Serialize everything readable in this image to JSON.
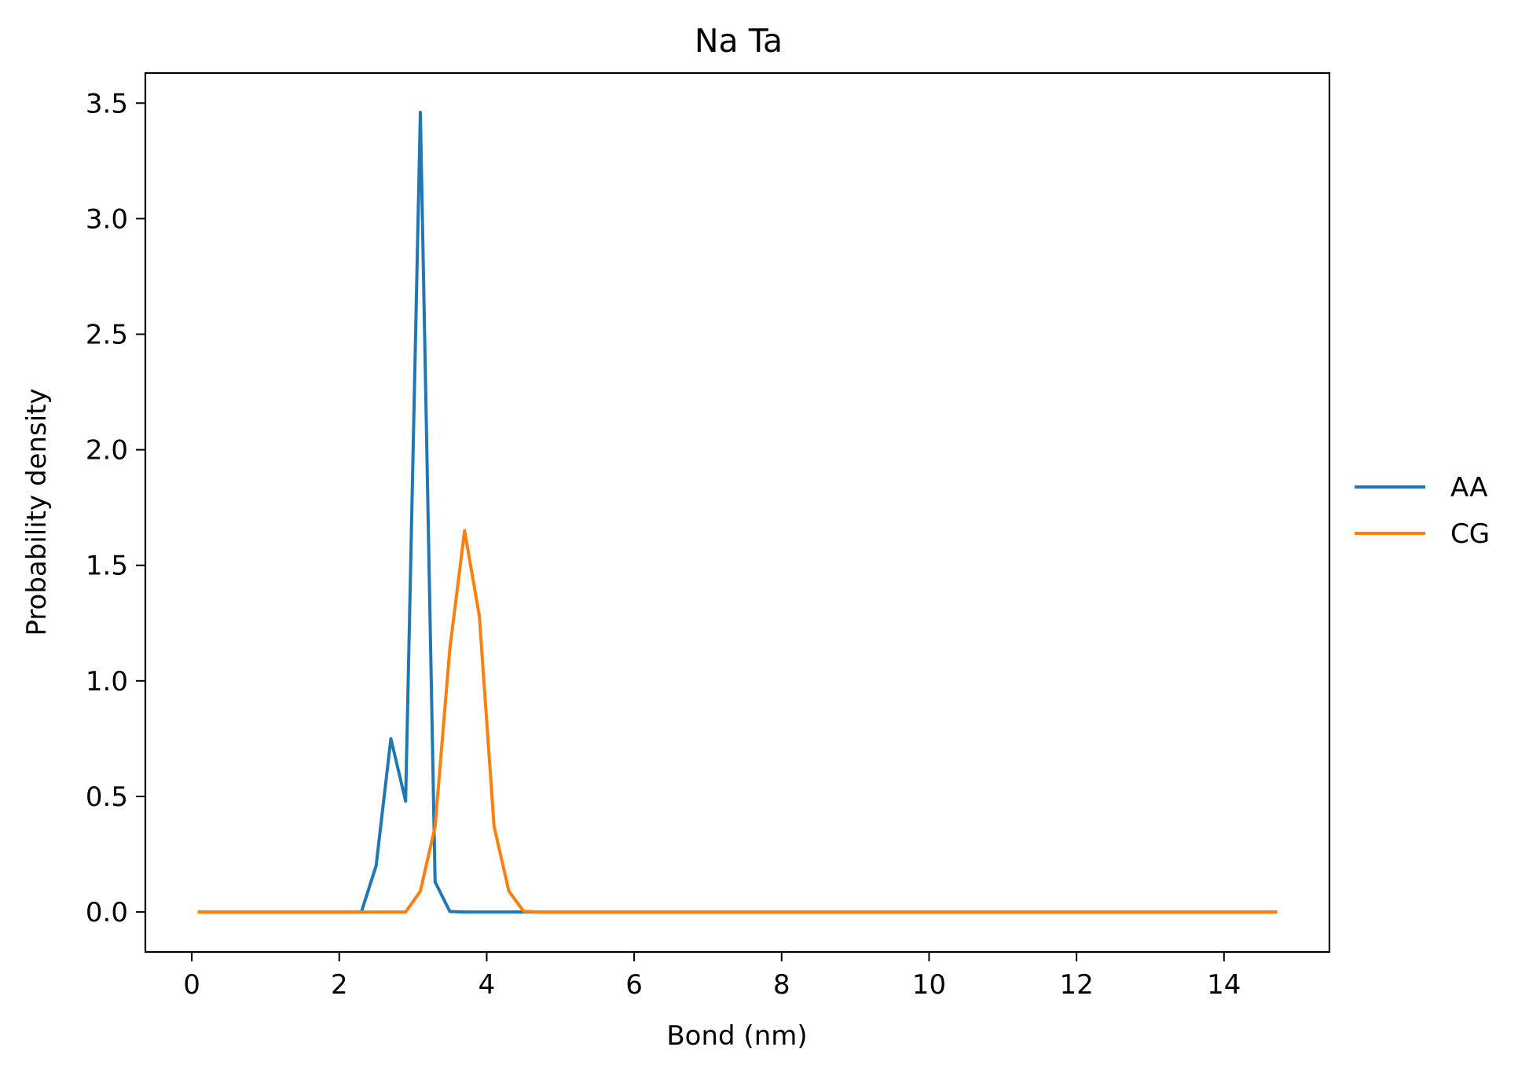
{
  "chart_data": {
    "type": "line",
    "title": "Na Ta",
    "xlabel": "Bond (nm)",
    "ylabel": "Probability density",
    "xlim": [
      -0.63,
      15.43
    ],
    "ylim": [
      -0.173,
      3.63
    ],
    "xticks": [
      0,
      2,
      4,
      6,
      8,
      10,
      12,
      14
    ],
    "xtick_labels": [
      "0",
      "2",
      "4",
      "6",
      "8",
      "10",
      "12",
      "14"
    ],
    "yticks": [
      0.0,
      0.5,
      1.0,
      1.5,
      2.0,
      2.5,
      3.0,
      3.5
    ],
    "ytick_labels": [
      "0.0",
      "0.5",
      "1.0",
      "1.5",
      "2.0",
      "2.5",
      "3.0",
      "3.5"
    ],
    "grid": false,
    "legend_position": "right, outside plot area",
    "series": [
      {
        "name": "AA",
        "color": "#1f77b4",
        "x": [
          0.1,
          0.3,
          0.5,
          0.7,
          0.9,
          1.1,
          1.3,
          1.5,
          1.7,
          1.9,
          2.1,
          2.3,
          2.5,
          2.7,
          2.9,
          3.1,
          3.3,
          3.5,
          3.7,
          3.9,
          4.1,
          4.3,
          4.5,
          4.7,
          4.9,
          5.1,
          5.3,
          5.5,
          5.7,
          5.9,
          6.1,
          6.3,
          6.5,
          6.7,
          6.9,
          7.1,
          7.3,
          7.5,
          7.7,
          7.9,
          8.1,
          8.3,
          8.5,
          8.7,
          8.9,
          9.1,
          9.3,
          9.5,
          9.7,
          9.9,
          10.1,
          10.3,
          10.5,
          10.7,
          10.9,
          11.1,
          11.3,
          11.5,
          11.7,
          11.9,
          12.1,
          12.3,
          12.5,
          12.7,
          12.9,
          13.1,
          13.3,
          13.5,
          13.7,
          13.9,
          14.1,
          14.3,
          14.5,
          14.7
        ],
        "y": [
          0.0,
          0.0,
          0.0,
          0.0,
          0.0,
          0.0,
          0.0,
          0.0,
          0.0,
          0.0,
          0.0,
          0.0,
          0.2,
          0.75,
          0.48,
          3.46,
          0.13,
          0.002,
          0.0,
          0.0,
          0.0,
          0.0,
          0.0,
          0.0,
          0.0,
          0.0,
          0.0,
          0.0,
          0.0,
          0.0,
          0.0,
          0.0,
          0.0,
          0.0,
          0.0,
          0.0,
          0.0,
          0.0,
          0.0,
          0.0,
          0.0,
          0.0,
          0.0,
          0.0,
          0.0,
          0.0,
          0.0,
          0.0,
          0.0,
          0.0,
          0.0,
          0.0,
          0.0,
          0.0,
          0.0,
          0.0,
          0.0,
          0.0,
          0.0,
          0.0,
          0.0,
          0.0,
          0.0,
          0.0,
          0.0,
          0.0,
          0.0,
          0.0,
          0.0,
          0.0,
          0.0,
          0.0,
          0.0,
          0.0
        ]
      },
      {
        "name": "CG",
        "color": "#ff7f0e",
        "x": [
          0.1,
          0.3,
          0.5,
          0.7,
          0.9,
          1.1,
          1.3,
          1.5,
          1.7,
          1.9,
          2.1,
          2.3,
          2.5,
          2.7,
          2.9,
          3.1,
          3.3,
          3.5,
          3.7,
          3.9,
          4.1,
          4.3,
          4.5,
          4.7,
          4.9,
          5.1,
          5.3,
          5.5,
          5.7,
          5.9,
          6.1,
          6.3,
          6.5,
          6.7,
          6.9,
          7.1,
          7.3,
          7.5,
          7.7,
          7.9,
          8.1,
          8.3,
          8.5,
          8.7,
          8.9,
          9.1,
          9.3,
          9.5,
          9.7,
          9.9,
          10.1,
          10.3,
          10.5,
          10.7,
          10.9,
          11.1,
          11.3,
          11.5,
          11.7,
          11.9,
          12.1,
          12.3,
          12.5,
          12.7,
          12.9,
          13.1,
          13.3,
          13.5,
          13.7,
          13.9,
          14.1,
          14.3,
          14.5,
          14.7
        ],
        "y": [
          0.0,
          0.0,
          0.0,
          0.0,
          0.0,
          0.0,
          0.0,
          0.0,
          0.0,
          0.0,
          0.0,
          0.0,
          0.0,
          0.0,
          0.0,
          0.09,
          0.37,
          1.14,
          1.65,
          1.28,
          0.37,
          0.09,
          0.003,
          0.0,
          0.0,
          0.0,
          0.0,
          0.0,
          0.0,
          0.0,
          0.0,
          0.0,
          0.0,
          0.0,
          0.0,
          0.0,
          0.0,
          0.0,
          0.0,
          0.0,
          0.0,
          0.0,
          0.0,
          0.0,
          0.0,
          0.0,
          0.0,
          0.0,
          0.0,
          0.0,
          0.0,
          0.0,
          0.0,
          0.0,
          0.0,
          0.0,
          0.0,
          0.0,
          0.0,
          0.0,
          0.0,
          0.0,
          0.0,
          0.0,
          0.0,
          0.0,
          0.0,
          0.0,
          0.0,
          0.0,
          0.0,
          0.0,
          0.0,
          0.0
        ]
      }
    ]
  }
}
